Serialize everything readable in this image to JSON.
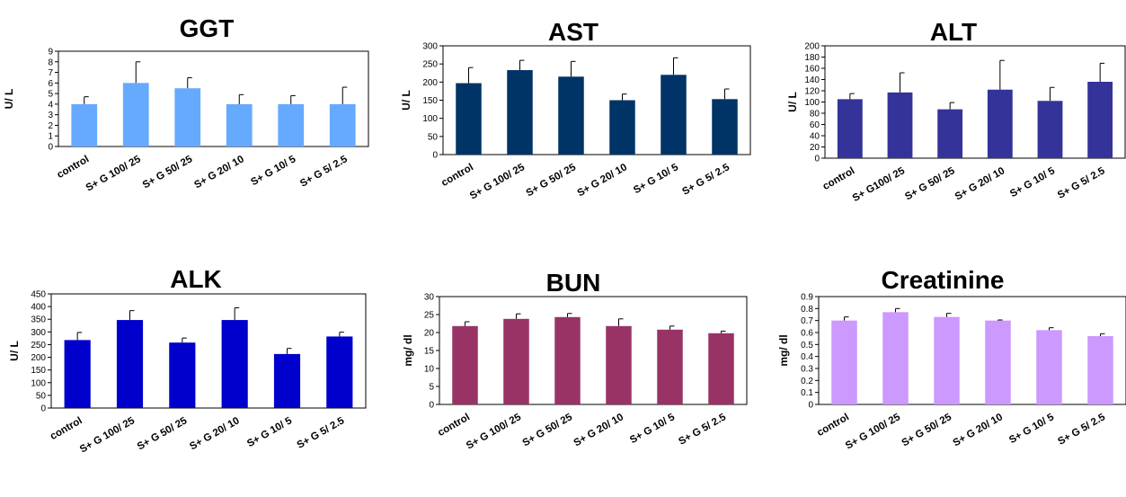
{
  "charts": [
    {
      "id": "ggt",
      "chart_data": {
        "type": "bar",
        "title": "GGT",
        "ylabel": "U/ L",
        "categories": [
          "control",
          "S+ G 100/ 25",
          "S+ G 50/ 25",
          "S+ G 20/ 10",
          "S+ G  10/ 5",
          "S+ G 5/ 2.5"
        ],
        "values": [
          4.0,
          6.0,
          5.5,
          4.0,
          4.0,
          4.0
        ],
        "errors": [
          0.7,
          2.0,
          1.0,
          0.9,
          0.8,
          1.6
        ],
        "ylim": [
          0,
          9
        ],
        "yticks": [
          0,
          1,
          2,
          3,
          4,
          5,
          6,
          7,
          8,
          9
        ],
        "color": "#66aaff"
      }
    },
    {
      "id": "ast",
      "chart_data": {
        "type": "bar",
        "title": "AST",
        "ylabel": "U/ L",
        "categories": [
          "control",
          "S+ G 100/ 25",
          "S+ G 50/ 25",
          "S+ G 20/ 10",
          "S+ G 10/ 5",
          "S+ G 5/ 2.5"
        ],
        "values": [
          197,
          233,
          215,
          150,
          220,
          153
        ],
        "errors": [
          43,
          27,
          42,
          17,
          47,
          28
        ],
        "ylim": [
          0,
          300
        ],
        "yticks": [
          0,
          50,
          100,
          150,
          200,
          250,
          300
        ],
        "color": "#003366"
      }
    },
    {
      "id": "alt",
      "chart_data": {
        "type": "bar",
        "title": "ALT",
        "ylabel": "U/ L",
        "categories": [
          "control",
          "S+ G100/ 25",
          "S+ G 50/ 25",
          "S+ G 20/ 10",
          "S+ G 10/ 5",
          "S+ G 5/ 2.5"
        ],
        "values": [
          105,
          117,
          87,
          122,
          102,
          136
        ],
        "errors": [
          10,
          35,
          12,
          52,
          24,
          33
        ],
        "ylim": [
          0,
          200
        ],
        "yticks": [
          0,
          20,
          40,
          60,
          80,
          100,
          120,
          140,
          160,
          180,
          200
        ],
        "color": "#333399"
      }
    },
    {
      "id": "alk",
      "chart_data": {
        "type": "bar",
        "title": "ALK",
        "ylabel": "U/ L",
        "categories": [
          "control",
          "S+ G 100/ 25",
          "S+ G 50/ 25",
          "S+ G 20/ 10",
          "S+ G  10/ 5",
          "S+ G 5/ 2.5"
        ],
        "values": [
          268,
          347,
          258,
          347,
          213,
          282
        ],
        "errors": [
          30,
          37,
          18,
          48,
          22,
          17
        ],
        "ylim": [
          0,
          450
        ],
        "yticks": [
          0,
          50,
          100,
          150,
          200,
          250,
          300,
          350,
          400,
          450
        ],
        "color": "#0000cc"
      }
    },
    {
      "id": "bun",
      "chart_data": {
        "type": "bar",
        "title": "BUN",
        "ylabel": "mg/ dl",
        "categories": [
          "control",
          "S+ G 100/ 25",
          "S+ G 50/ 25",
          "S+ G 20/ 10",
          "S+ G  10/ 5",
          "S+ G 5/ 2.5"
        ],
        "values": [
          21.8,
          23.8,
          24.3,
          21.8,
          20.8,
          19.8
        ],
        "errors": [
          1.2,
          1.4,
          1.0,
          2.0,
          1.0,
          0.6
        ],
        "ylim": [
          0,
          30
        ],
        "yticks": [
          0,
          5,
          10,
          15,
          20,
          25,
          30
        ],
        "color": "#993366"
      }
    },
    {
      "id": "creatinine",
      "chart_data": {
        "type": "bar",
        "title": "Creatinine",
        "ylabel": "mg/ dl",
        "categories": [
          "control",
          "S+ G 100/ 25",
          "S+ G 50/ 25",
          "S+ G 20/ 10",
          "S+ G 10/ 5",
          "S+ G 5/ 2.5"
        ],
        "values": [
          0.7,
          0.77,
          0.73,
          0.7,
          0.62,
          0.57
        ],
        "errors": [
          0.03,
          0.03,
          0.03,
          0.005,
          0.02,
          0.02
        ],
        "ylim": [
          0,
          0.9
        ],
        "yticks": [
          "0",
          "0.1",
          "0.2",
          "0.3",
          "0.4",
          "0.5",
          "0.6",
          "0.7",
          "0.8",
          "0.9"
        ],
        "color": "#cc99ff"
      }
    }
  ]
}
